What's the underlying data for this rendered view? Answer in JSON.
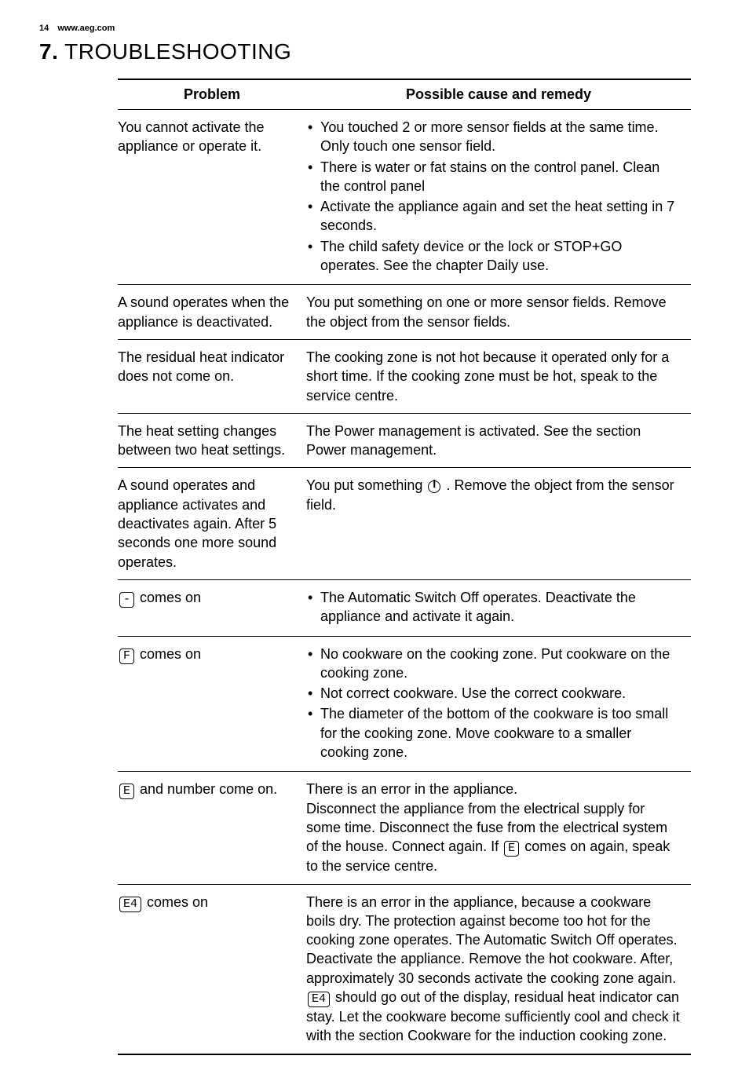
{
  "header": {
    "page_number": "14",
    "site": "www.aeg.com"
  },
  "section": {
    "number": "7.",
    "title": "TROUBLESHOOTING"
  },
  "table": {
    "columns": [
      "Problem",
      "Possible cause and remedy"
    ],
    "rows": [
      {
        "problem": "You cannot activate the appliance or operate it.",
        "remedy_type": "list",
        "remedy": [
          "You touched 2 or more sensor fields at the same time. Only touch one sensor field.",
          "There is water or fat stains on the control panel. Clean the control panel",
          "Activate the appliance again and set the heat setting in 7 seconds.",
          "The child safety device or the lock or STOP+GO operates. See the chapter Daily use."
        ]
      },
      {
        "problem": "A sound operates when the appliance is deactivated.",
        "remedy_type": "text",
        "remedy": "You put something on one or more sensor fields. Remove the object from the sensor fields."
      },
      {
        "problem": "The residual heat indicator does not come on.",
        "remedy_type": "text",
        "remedy": "The cooking zone is not hot because it operated only for a short time. If the cooking zone must be hot, speak to the service centre."
      },
      {
        "problem": "The heat setting changes between two heat settings.",
        "remedy_type": "text",
        "remedy": "The Power management is activated. See the section Power management."
      },
      {
        "problem": "A sound operates and appliance activates and deactivates again. After 5 seconds one more sound operates.",
        "remedy_type": "power",
        "remedy_pre": "You put something ",
        "remedy_post": " . Remove the object from the sensor field."
      },
      {
        "problem_seg": "-",
        "problem_after": " comes on",
        "remedy_type": "list",
        "remedy": [
          "The Automatic Switch Off operates. Deactivate the appliance and activate it again."
        ]
      },
      {
        "problem_seg": "F",
        "problem_after": " comes on",
        "remedy_type": "list",
        "remedy": [
          "No cookware on the cooking zone. Put cookware on the cooking zone.",
          "Not correct cookware. Use the correct cookware.",
          "The diameter of the bottom of the cookware is too small for the cooking zone. Move cookware to a smaller cooking zone."
        ]
      },
      {
        "problem_seg": "E",
        "problem_after": " and number come on.",
        "remedy_type": "seg_inline",
        "remedy_pre": "There is an error in the appliance.\nDisconnect the appliance from the electrical supply for some time. Disconnect the fuse from the electrical system of the house. Connect again. If ",
        "remedy_seg": "E",
        "remedy_post": " comes on again, speak to the service centre."
      },
      {
        "problem_seg": "E4",
        "problem_after": " comes on",
        "remedy_type": "seg_inline",
        "remedy_pre": "There is an error in the appliance, because a cookware boils dry. The protection against become too hot for the cooking zone operates. The Automatic Switch Off operates.\nDeactivate the appliance. Remove the hot cookware. After, approximately 30 seconds activate the cooking zone again. ",
        "remedy_seg": "E4",
        "remedy_post": " should go out of the display, residual heat indicator can stay. Let the cookware become sufficiently cool and check it with the section Cookware for the induction cooking zone."
      }
    ]
  }
}
